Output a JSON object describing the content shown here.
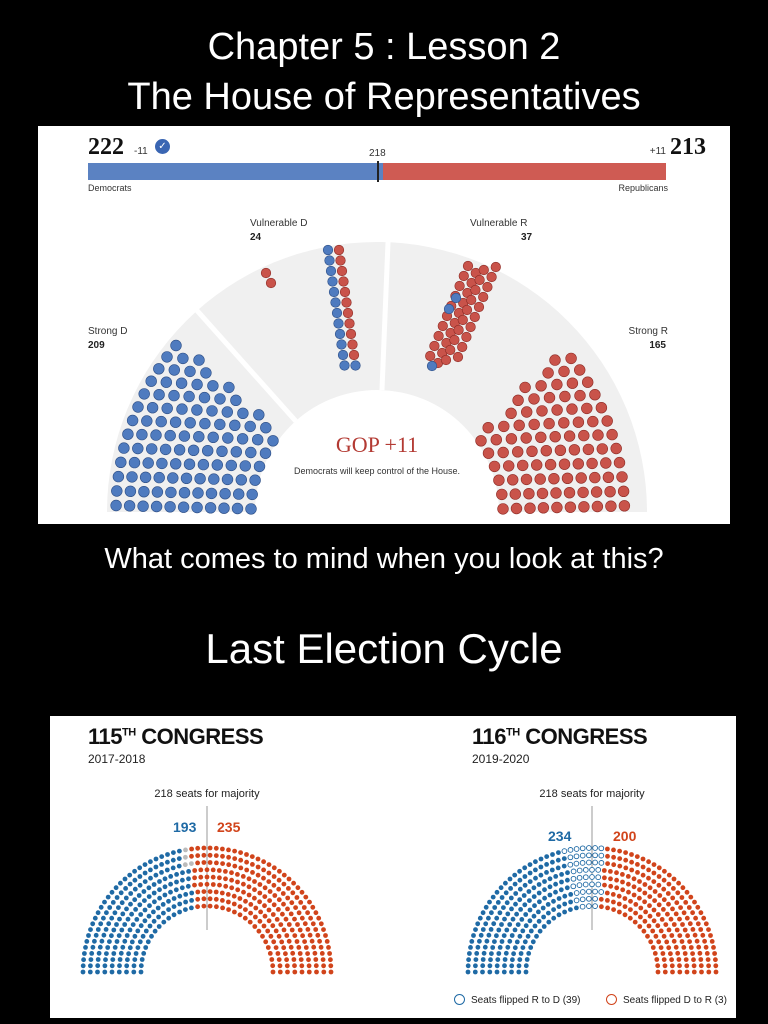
{
  "slide": {
    "title_line1": "Chapter 5 : Lesson 2",
    "title_line2": "The House of Representatives",
    "question": "What comes to mind when you look at this?",
    "section_title": "Last Election Cycle"
  },
  "forecast": {
    "dem_seats": "222",
    "dem_change": "-11",
    "rep_seats": "213",
    "rep_change": "+11",
    "majority_marker": "218",
    "dem_label": "Democrats",
    "rep_label": "Republicans",
    "dem_share": 0.5103,
    "vulnerable_d_label": "Vulnerable D",
    "vulnerable_d_count": "24",
    "vulnerable_r_label": "Vulnerable R",
    "vulnerable_r_count": "37",
    "strong_d_label": "Strong D",
    "strong_d_count": "209",
    "strong_r_label": "Strong R",
    "strong_r_count": "165",
    "headline": "GOP +11",
    "subline": "Democrats will keep control of the House.",
    "colors": {
      "dem": "#4f7bbf",
      "rep": "#c9534a",
      "dem_bar": "#5b82c2",
      "rep_bar": "#cf5b53"
    }
  },
  "congress_115": {
    "title_num": "115",
    "title_sup": "TH",
    "title_rest": " CONGRESS",
    "years": "2017-2018",
    "majority_label": "218 seats for majority",
    "dem_seats": "193",
    "rep_seats": "235",
    "vacant": 7
  },
  "congress_116": {
    "title_num": "116",
    "title_sup": "TH",
    "title_rest": " CONGRESS",
    "years": "2019-2020",
    "majority_label": "218 seats for majority",
    "dem_seats": "234",
    "rep_seats": "200",
    "flipped_r_to_d": 39,
    "flipped_d_to_r": 3
  },
  "legend": {
    "flipped_r_to_d": "Seats flipped R to D (39)",
    "flipped_d_to_r": "Seats flipped D to R (3)"
  },
  "congress_colors": {
    "dem": "#1f6aa5",
    "rep": "#d1441b",
    "vacant": "#bbbbbb"
  }
}
